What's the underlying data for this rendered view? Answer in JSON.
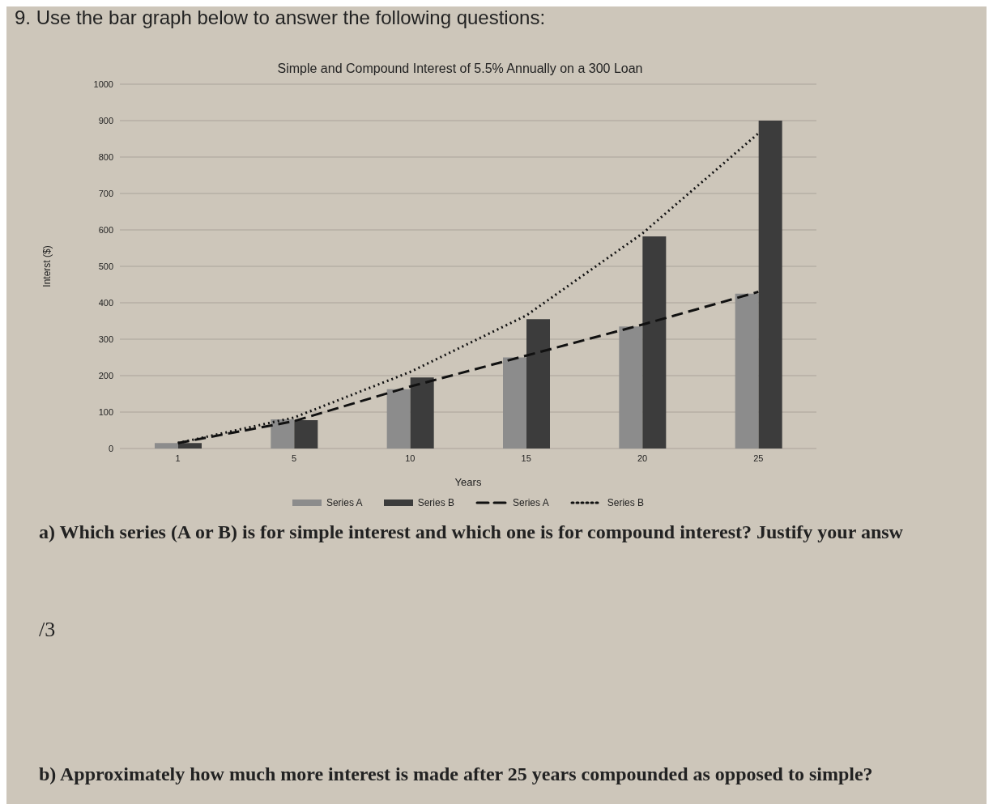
{
  "chart_data": {
    "type": "bar",
    "title": "Simple and Compound Interest of 5.5% Annually on a 300 Loan",
    "xlabel": "Years",
    "ylabel": "Interst ($)",
    "categories": [
      "1",
      "5",
      "10",
      "15",
      "20",
      "25"
    ],
    "series": [
      {
        "name": "Series A",
        "color": "#8c8c8c",
        "values": [
          15,
          80,
          163,
          250,
          335,
          425
        ]
      },
      {
        "name": "Series B",
        "color": "#3c3c3c",
        "values": [
          15,
          78,
          195,
          355,
          582,
          900
        ]
      },
      {
        "name": "Series A",
        "type": "line",
        "color": "#111111",
        "line_style": "dashed",
        "values": [
          15,
          75,
          170,
          255,
          340,
          430
        ]
      },
      {
        "name": "Series B",
        "type": "line",
        "color": "#111111",
        "line_style": "dotted",
        "values": [
          15,
          85,
          210,
          365,
          590,
          865
        ]
      }
    ],
    "ylim": [
      0,
      1000
    ],
    "yticks": [
      0,
      100,
      200,
      300,
      400,
      500,
      600,
      700,
      800,
      900,
      1000
    ],
    "grid": "y",
    "legend": "bottom",
    "annotations": [
      "9. Use the bar graph below to answer the following questions:",
      "a) Which series (A or B) is for simple interest and which one is for compound interest? Justify your answ",
      "/3",
      "b) Approximately how much more interest is made after 25 years compounded as opposed to simple?"
    ]
  }
}
